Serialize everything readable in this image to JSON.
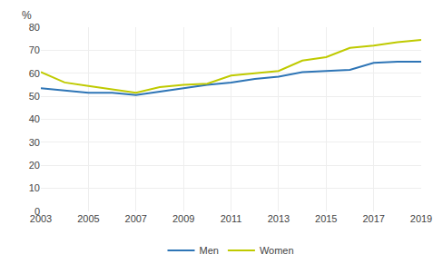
{
  "chart_data": {
    "type": "line",
    "ylabel": "%",
    "x": [
      2003,
      2004,
      2005,
      2006,
      2007,
      2008,
      2009,
      2010,
      2011,
      2012,
      2013,
      2014,
      2015,
      2016,
      2017,
      2018,
      2019
    ],
    "series": [
      {
        "name": "Men",
        "color": "#2E75B6",
        "values": [
          53.5,
          52.5,
          51.5,
          51.5,
          50.5,
          52.0,
          53.5,
          55.0,
          56.0,
          57.5,
          58.5,
          60.5,
          61.0,
          61.5,
          64.5,
          65.0,
          65.0
        ]
      },
      {
        "name": "Women",
        "color": "#BFCA00",
        "values": [
          60.5,
          56.0,
          54.5,
          53.0,
          51.5,
          54.0,
          55.0,
          55.5,
          59.0,
          60.0,
          61.0,
          65.5,
          67.0,
          71.0,
          72.0,
          73.5,
          74.5
        ]
      }
    ],
    "xlim": [
      2003,
      2019
    ],
    "xticks": [
      2003,
      2005,
      2007,
      2009,
      2011,
      2013,
      2015,
      2017,
      2019
    ],
    "ylim": [
      0,
      80
    ],
    "yticks": [
      0,
      10,
      20,
      30,
      40,
      50,
      60,
      70,
      80
    ],
    "grid": true,
    "legend": "bottom"
  }
}
